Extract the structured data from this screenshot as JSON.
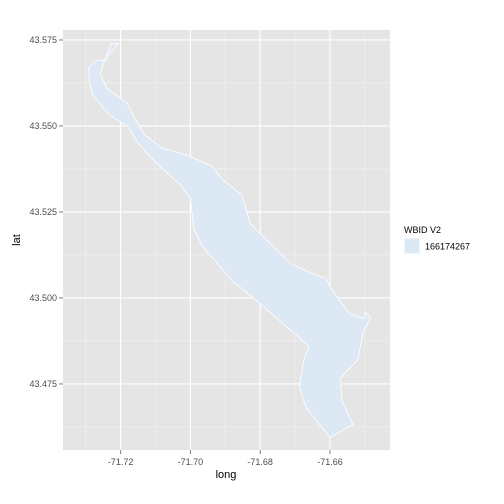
{
  "chart_data": {
    "type": "map",
    "xlabel": "long",
    "ylabel": "lat",
    "xlim": [
      -71.7365,
      -71.6428
    ],
    "ylim": [
      43.4558,
      43.5779
    ],
    "x_ticks": [
      -71.72,
      -71.7,
      -71.68,
      -71.66
    ],
    "x_tick_labels": [
      "-71.72",
      "-71.70",
      "-71.68",
      "-71.66"
    ],
    "y_ticks": [
      43.475,
      43.5,
      43.525,
      43.55,
      43.575
    ],
    "y_tick_labels": [
      "43.475",
      "43.500",
      "43.525",
      "43.550",
      "43.575"
    ],
    "grid": true,
    "legend": {
      "title": "WBID V2",
      "position": "right",
      "entries": [
        {
          "label": "166174267",
          "color": "#dde8f5"
        }
      ]
    },
    "series": [
      {
        "name": "166174267",
        "fill": "#dde8f5",
        "stroke": "#ffffff",
        "outline": [
          [
            -71.7227,
            43.5739
          ],
          [
            -71.725,
            43.568
          ],
          [
            -71.7258,
            43.5654
          ],
          [
            -71.724,
            43.561
          ],
          [
            -71.7181,
            43.5566
          ],
          [
            -71.7158,
            43.552
          ],
          [
            -71.713,
            43.5473
          ],
          [
            -71.708,
            43.5435
          ],
          [
            -71.7012,
            43.5416
          ],
          [
            -71.6942,
            43.5386
          ],
          [
            -71.6905,
            43.5342
          ],
          [
            -71.6852,
            43.53
          ],
          [
            -71.6828,
            43.5215
          ],
          [
            -71.6752,
            43.514
          ],
          [
            -71.6713,
            43.51
          ],
          [
            -71.6645,
            43.5068
          ],
          [
            -71.6612,
            43.5058
          ],
          [
            -71.6595,
            43.5025
          ],
          [
            -71.6545,
            43.4955
          ],
          [
            -71.6503,
            43.494
          ],
          [
            -71.6497,
            43.4958
          ],
          [
            -71.6483,
            43.4942
          ],
          [
            -71.6505,
            43.4902
          ],
          [
            -71.652,
            43.482
          ],
          [
            -71.655,
            43.479
          ],
          [
            -71.657,
            43.4765
          ],
          [
            -71.6565,
            43.47
          ],
          [
            -71.6534,
            43.4632
          ],
          [
            -71.66,
            43.4595
          ],
          [
            -71.6668,
            43.468
          ],
          [
            -71.6688,
            43.474
          ],
          [
            -71.6675,
            43.482
          ],
          [
            -71.666,
            43.486
          ],
          [
            -71.6715,
            43.4908
          ],
          [
            -71.679,
            43.4975
          ],
          [
            -71.688,
            43.505
          ],
          [
            -71.6965,
            43.515
          ],
          [
            -71.699,
            43.52
          ],
          [
            -71.7,
            43.529
          ],
          [
            -71.703,
            43.533
          ],
          [
            -71.7105,
            43.54
          ],
          [
            -71.715,
            43.545
          ],
          [
            -71.718,
            43.55
          ],
          [
            -71.723,
            43.553
          ],
          [
            -71.728,
            43.559
          ],
          [
            -71.7288,
            43.562
          ],
          [
            -71.7292,
            43.567
          ],
          [
            -71.727,
            43.569
          ],
          [
            -71.724,
            43.569
          ],
          [
            -71.7232,
            43.571
          ],
          [
            -71.7205,
            43.574
          ]
        ]
      }
    ]
  }
}
